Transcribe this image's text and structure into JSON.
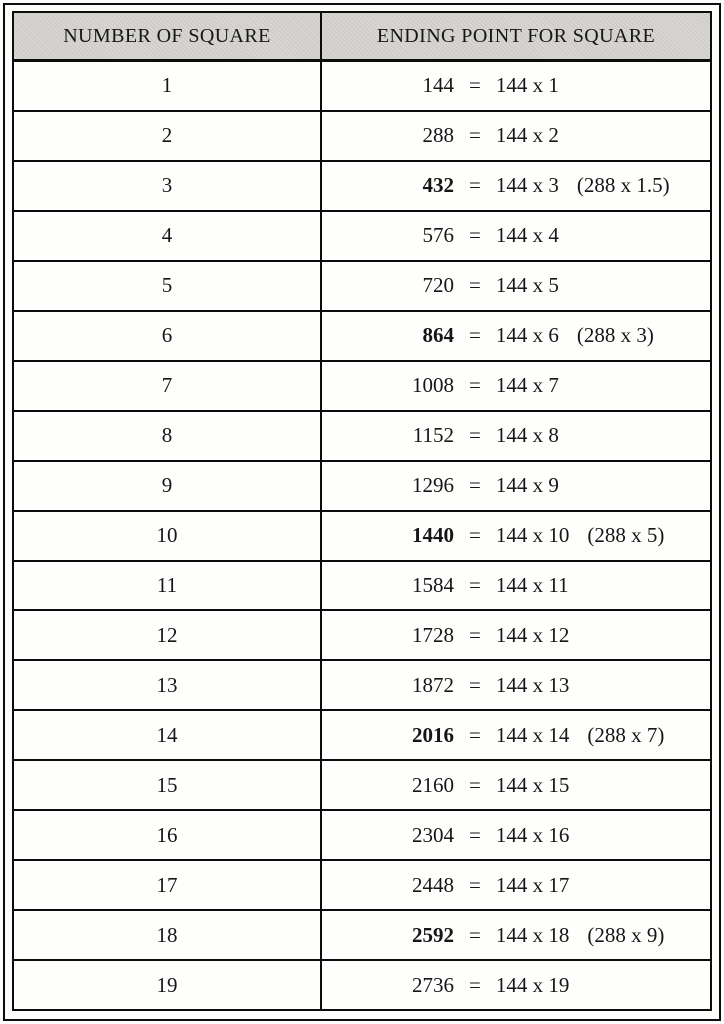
{
  "colors": {
    "border": "#0c0c0c",
    "header_bg": "#d5d3cf",
    "text": "#161616",
    "paper": "#fdfdfb"
  },
  "table": {
    "headers": [
      "NUMBER OF SQUARE",
      "ENDING POINT FOR SQUARE"
    ],
    "equals": "=",
    "rows": [
      {
        "n": "1",
        "value": "144",
        "formula": "144 x 1",
        "note": "",
        "bold": false
      },
      {
        "n": "2",
        "value": "288",
        "formula": "144 x 2",
        "note": "",
        "bold": false
      },
      {
        "n": "3",
        "value": "432",
        "formula": "144 x 3",
        "note": "(288 x 1.5)",
        "bold": true
      },
      {
        "n": "4",
        "value": "576",
        "formula": "144 x 4",
        "note": "",
        "bold": false
      },
      {
        "n": "5",
        "value": "720",
        "formula": "144 x 5",
        "note": "",
        "bold": false
      },
      {
        "n": "6",
        "value": "864",
        "formula": "144 x 6",
        "note": "(288 x 3)",
        "bold": true
      },
      {
        "n": "7",
        "value": "1008",
        "formula": "144 x 7",
        "note": "",
        "bold": false
      },
      {
        "n": "8",
        "value": "1152",
        "formula": "144 x 8",
        "note": "",
        "bold": false
      },
      {
        "n": "9",
        "value": "1296",
        "formula": "144 x 9",
        "note": "",
        "bold": false
      },
      {
        "n": "10",
        "value": "1440",
        "formula": "144 x 10",
        "note": "(288 x 5)",
        "bold": true
      },
      {
        "n": "11",
        "value": "1584",
        "formula": "144 x 11",
        "note": "",
        "bold": false
      },
      {
        "n": "12",
        "value": "1728",
        "formula": "144 x 12",
        "note": "",
        "bold": false
      },
      {
        "n": "13",
        "value": "1872",
        "formula": "144 x 13",
        "note": "",
        "bold": false
      },
      {
        "n": "14",
        "value": "2016",
        "formula": "144 x 14",
        "note": "(288 x 7)",
        "bold": true
      },
      {
        "n": "15",
        "value": "2160",
        "formula": "144 x 15",
        "note": "",
        "bold": false
      },
      {
        "n": "16",
        "value": "2304",
        "formula": "144 x 16",
        "note": "",
        "bold": false
      },
      {
        "n": "17",
        "value": "2448",
        "formula": "144 x 17",
        "note": "",
        "bold": false
      },
      {
        "n": "18",
        "value": "2592",
        "formula": "144 x 18",
        "note": "(288 x 9)",
        "bold": true
      },
      {
        "n": "19",
        "value": "2736",
        "formula": "144 x 19",
        "note": "",
        "bold": false
      }
    ]
  }
}
